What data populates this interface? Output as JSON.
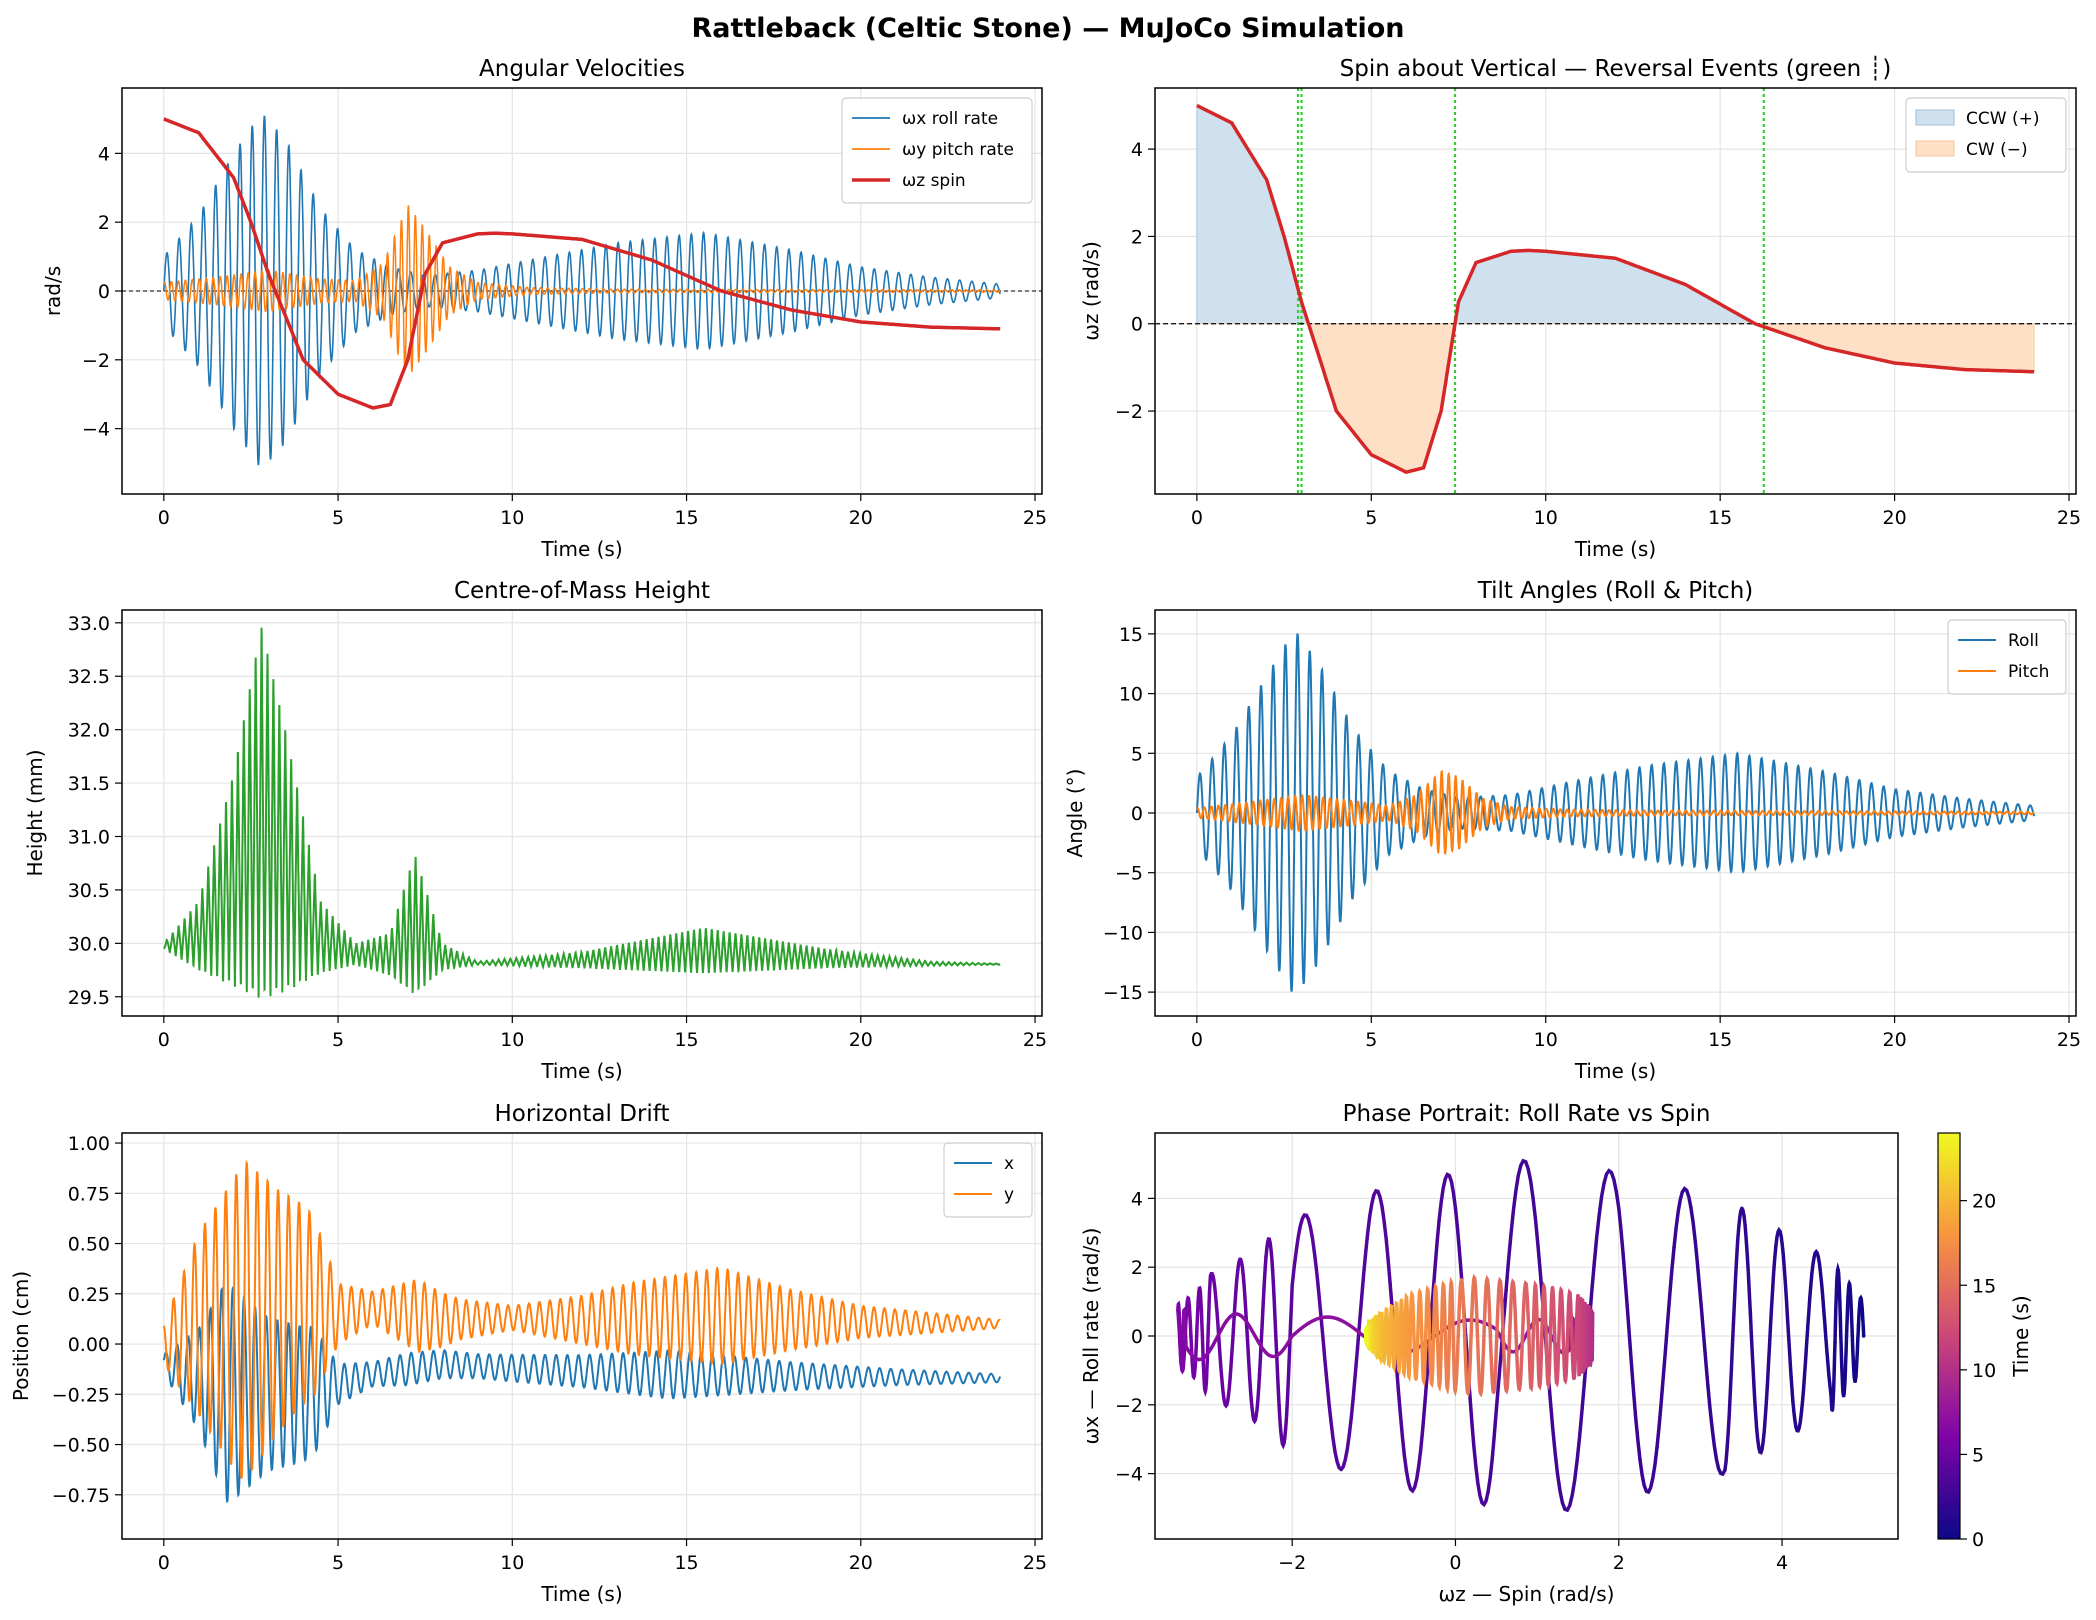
{
  "figure": {
    "title": "Rattleback (Celtic Stone) — MuJoCo Simulation",
    "colors": {
      "blue": "#1f77b4",
      "orange": "#ff7f0e",
      "green": "#2ca02c",
      "red": "#d62728",
      "reversal_green": "#33cc33",
      "ccw_fill": "#cfe0ee",
      "cw_fill": "#fde0c6"
    }
  },
  "chart_data": [
    {
      "id": "angular-velocities",
      "type": "line",
      "title": "Angular Velocities",
      "xlabel": "Time (s)",
      "ylabel": "rad/s",
      "xlim": [
        -1.2,
        25.2
      ],
      "ylim": [
        -5.9,
        5.9
      ],
      "xticks": [
        0,
        5,
        10,
        15,
        20,
        25
      ],
      "yticks": [
        -4,
        -2,
        0,
        2,
        4
      ],
      "grid": true,
      "legend_position": "top-right",
      "legend": [
        "ωx roll rate",
        "ωy pitch rate",
        "ωz spin"
      ],
      "series": [
        {
          "name": "ωz spin",
          "color": "#d62728",
          "x": [
            0,
            1,
            2,
            2.5,
            3,
            4,
            5,
            6,
            6.5,
            7,
            7.5,
            8,
            9,
            9.5,
            10,
            12,
            14,
            16,
            18,
            20,
            22,
            24
          ],
          "y": [
            5.0,
            4.6,
            3.3,
            2.0,
            0.5,
            -2.0,
            -3.0,
            -3.4,
            -3.3,
            -2.0,
            0.5,
            1.4,
            1.66,
            1.68,
            1.66,
            1.5,
            0.9,
            0.0,
            -0.55,
            -0.9,
            -1.05,
            -1.1
          ]
        },
        {
          "name": "ωx roll rate",
          "color": "#1f77b4",
          "envelope": {
            "x": [
              0,
              1,
              2,
              2.8,
              3.5,
              4.5,
              5.5,
              6.5,
              7.5,
              9,
              11,
              13,
              15.5,
              18,
              20,
              22,
              24
            ],
            "amp": [
              1.0,
              2.2,
              4.0,
              5.2,
              4.4,
              2.4,
              1.2,
              0.7,
              0.45,
              0.6,
              1.0,
              1.4,
              1.7,
              1.2,
              0.7,
              0.4,
              0.2
            ]
          }
        },
        {
          "name": "ωy pitch rate",
          "color": "#ff7f0e",
          "envelope": {
            "x": [
              0,
              1.5,
              3,
              4.5,
              5.5,
              6.3,
              7,
              7.5,
              8.2,
              9,
              10.5,
              13,
              24
            ],
            "amp": [
              0.25,
              0.4,
              0.6,
              0.35,
              0.3,
              0.8,
              2.5,
              1.8,
              0.7,
              0.25,
              0.1,
              0.05,
              0.03
            ]
          }
        }
      ]
    },
    {
      "id": "spin-reversal",
      "type": "line",
      "title": "Spin about Vertical — Reversal Events  (green ┊)",
      "xlabel": "Time (s)",
      "ylabel": "ωz (rad/s)",
      "xlim": [
        -1.2,
        25.2
      ],
      "ylim": [
        -3.9,
        5.4
      ],
      "xticks": [
        0,
        5,
        10,
        15,
        20,
        25
      ],
      "yticks": [
        -2,
        0,
        2,
        4
      ],
      "grid": true,
      "legend_position": "top-right",
      "legend": [
        "CCW (+)",
        "CW  (−)"
      ],
      "reversal_events": [
        2.9,
        3.0,
        7.4,
        16.25
      ],
      "series": [
        {
          "name": "ωz",
          "color": "#d62728",
          "x": [
            0,
            1,
            2,
            2.5,
            3,
            4,
            5,
            6,
            6.5,
            7,
            7.5,
            8,
            9,
            9.5,
            10,
            12,
            14,
            16,
            18,
            20,
            22,
            24
          ],
          "y": [
            5.0,
            4.6,
            3.3,
            2.0,
            0.5,
            -2.0,
            -3.0,
            -3.4,
            -3.3,
            -2.0,
            0.5,
            1.4,
            1.66,
            1.68,
            1.66,
            1.5,
            0.9,
            0.0,
            -0.55,
            -0.9,
            -1.05,
            -1.1
          ]
        }
      ]
    },
    {
      "id": "com-height",
      "type": "line",
      "title": "Centre-of-Mass Height",
      "xlabel": "Time (s)",
      "ylabel": "Height (mm)",
      "xlim": [
        -1.2,
        25.2
      ],
      "ylim": [
        29.32,
        33.12
      ],
      "xticks": [
        0,
        5,
        10,
        15,
        20,
        25
      ],
      "yticks": [
        29.5,
        30.0,
        30.5,
        31.0,
        31.5,
        32.0,
        32.5,
        33.0
      ],
      "ytick_labels": [
        "29.5",
        "30.0",
        "30.5",
        "31.0",
        "31.5",
        "32.0",
        "32.5",
        "33.0"
      ],
      "grid": true,
      "series": [
        {
          "name": "",
          "color": "#2ca02c",
          "baseline": 29.8,
          "upper_envelope": {
            "x": [
              0,
              1,
              2,
              2.8,
              3.5,
              4.5,
              5.5,
              6.5,
              7.2,
              8,
              9,
              12,
              15.5,
              19,
              22,
              24
            ],
            "y": [
              30.0,
              30.4,
              31.6,
              33.0,
              32.0,
              30.4,
              30.0,
              30.1,
              30.85,
              30.0,
              29.83,
              29.92,
              30.15,
              29.95,
              29.83,
              29.81
            ]
          },
          "lower_envelope": {
            "x": [
              0,
              1,
              2,
              2.8,
              3.5,
              4.5,
              5.5,
              6.5,
              7.2,
              8,
              9,
              12,
              15.5,
              19,
              22,
              24
            ],
            "y": [
              29.95,
              29.75,
              29.6,
              29.48,
              29.55,
              29.72,
              29.8,
              29.7,
              29.52,
              29.75,
              29.8,
              29.77,
              29.72,
              29.77,
              29.79,
              29.8
            ]
          }
        }
      ]
    },
    {
      "id": "tilt-angles",
      "type": "line",
      "title": "Tilt Angles (Roll & Pitch)",
      "xlabel": "Time (s)",
      "ylabel": "Angle (°)",
      "xlim": [
        -1.2,
        25.2
      ],
      "ylim": [
        -17,
        17
      ],
      "xticks": [
        0,
        5,
        10,
        15,
        20,
        25
      ],
      "yticks": [
        -15,
        -10,
        -5,
        0,
        5,
        10,
        15
      ],
      "grid": true,
      "legend_position": "top-right",
      "legend": [
        "Roll",
        "Pitch"
      ],
      "series": [
        {
          "name": "Roll",
          "color": "#1f77b4",
          "envelope": {
            "x": [
              0,
              1,
              2,
              2.8,
              3.5,
              4.5,
              5.5,
              6.5,
              7.5,
              9,
              11,
              13,
              15.5,
              18,
              20,
              22,
              24
            ],
            "amp": [
              3.0,
              6.5,
              11.5,
              15.4,
              12.5,
              7.0,
              3.5,
              2.0,
              1.3,
              1.5,
              2.8,
              4.0,
              5.0,
              3.5,
              2.0,
              1.2,
              0.6
            ]
          }
        },
        {
          "name": "Pitch",
          "color": "#ff7f0e",
          "envelope": {
            "x": [
              0,
              1.5,
              3,
              4.5,
              5.5,
              6.3,
              7,
              7.5,
              8.2,
              9,
              10.5,
              13,
              24
            ],
            "amp": [
              0.4,
              0.9,
              1.5,
              1.0,
              0.6,
              1.5,
              3.5,
              3.0,
              1.2,
              0.5,
              0.3,
              0.2,
              0.1
            ]
          }
        }
      ]
    },
    {
      "id": "horizontal-drift",
      "type": "line",
      "title": "Horizontal Drift",
      "xlabel": "Time (s)",
      "ylabel": "Position (cm)",
      "xlim": [
        -1.2,
        25.2
      ],
      "ylim": [
        -0.97,
        1.05
      ],
      "xticks": [
        0,
        5,
        10,
        15,
        20,
        25
      ],
      "yticks": [
        -0.75,
        -0.5,
        -0.25,
        0.0,
        0.25,
        0.5,
        0.75,
        1.0
      ],
      "ytick_labels": [
        "−0.75",
        "−0.50",
        "−0.25",
        "0.00",
        "0.25",
        "0.50",
        "0.75",
        "1.00"
      ],
      "grid": true,
      "legend_position": "top-right",
      "legend": [
        "x",
        "y"
      ],
      "series": [
        {
          "name": "x",
          "color": "#1f77b4",
          "center": {
            "x": [
              0,
              2,
              4,
              6,
              8,
              10,
              14,
              18,
              24
            ],
            "y": [
              -0.1,
              -0.25,
              -0.25,
              -0.15,
              -0.1,
              -0.12,
              -0.15,
              -0.16,
              -0.17
            ]
          },
          "envelope": {
            "x": [
              0,
              1,
              1.8,
              3,
              4.3,
              5,
              6,
              7,
              9,
              12,
              14.5,
              16,
              18,
              21,
              24
            ],
            "amp": [
              0.05,
              0.25,
              0.55,
              0.38,
              0.32,
              0.1,
              0.06,
              0.08,
              0.06,
              0.08,
              0.12,
              0.1,
              0.07,
              0.04,
              0.02
            ]
          }
        },
        {
          "name": "y",
          "color": "#ff7f0e",
          "center": {
            "x": [
              0,
              1,
              2,
              3,
              4,
              5,
              6,
              7,
              8,
              10,
              12,
              14,
              16,
              18,
              20,
              24
            ],
            "y": [
              0.0,
              0.1,
              0.1,
              0.15,
              0.2,
              0.15,
              0.18,
              0.15,
              0.12,
              0.13,
              0.12,
              0.13,
              0.14,
              0.12,
              0.11,
              0.1
            ]
          },
          "envelope": {
            "x": [
              0,
              1,
              2.3,
              3.3,
              4.3,
              5,
              6,
              7.3,
              8.5,
              10,
              12,
              13.5,
              16,
              18,
              20,
              22,
              24
            ],
            "amp": [
              0.1,
              0.45,
              0.8,
              0.6,
              0.45,
              0.15,
              0.08,
              0.18,
              0.1,
              0.06,
              0.12,
              0.18,
              0.24,
              0.15,
              0.08,
              0.05,
              0.02
            ]
          }
        }
      ]
    },
    {
      "id": "phase-portrait",
      "type": "scatter",
      "title": "Phase Portrait: Roll Rate vs Spin",
      "xlabel": "ωz — Spin (rad/s)",
      "ylabel": "ωx — Roll rate (rad/s)",
      "xlim": [
        -3.68,
        5.42
      ],
      "ylim": [
        -5.9,
        5.9
      ],
      "xticks": [
        -2,
        0,
        2,
        4
      ],
      "yticks": [
        -4,
        -2,
        0,
        2,
        4
      ],
      "grid": true,
      "colorbar": {
        "label": "Time (s)",
        "range": [
          0,
          24
        ],
        "ticks": [
          0,
          5,
          10,
          15,
          20
        ],
        "colormap": [
          "#0d0887",
          "#7e03a8",
          "#cc4778",
          "#f89540",
          "#f0f921"
        ]
      },
      "trajectory_source": "angular-velocities: x = ωz spin, y = ωx roll rate"
    }
  ]
}
